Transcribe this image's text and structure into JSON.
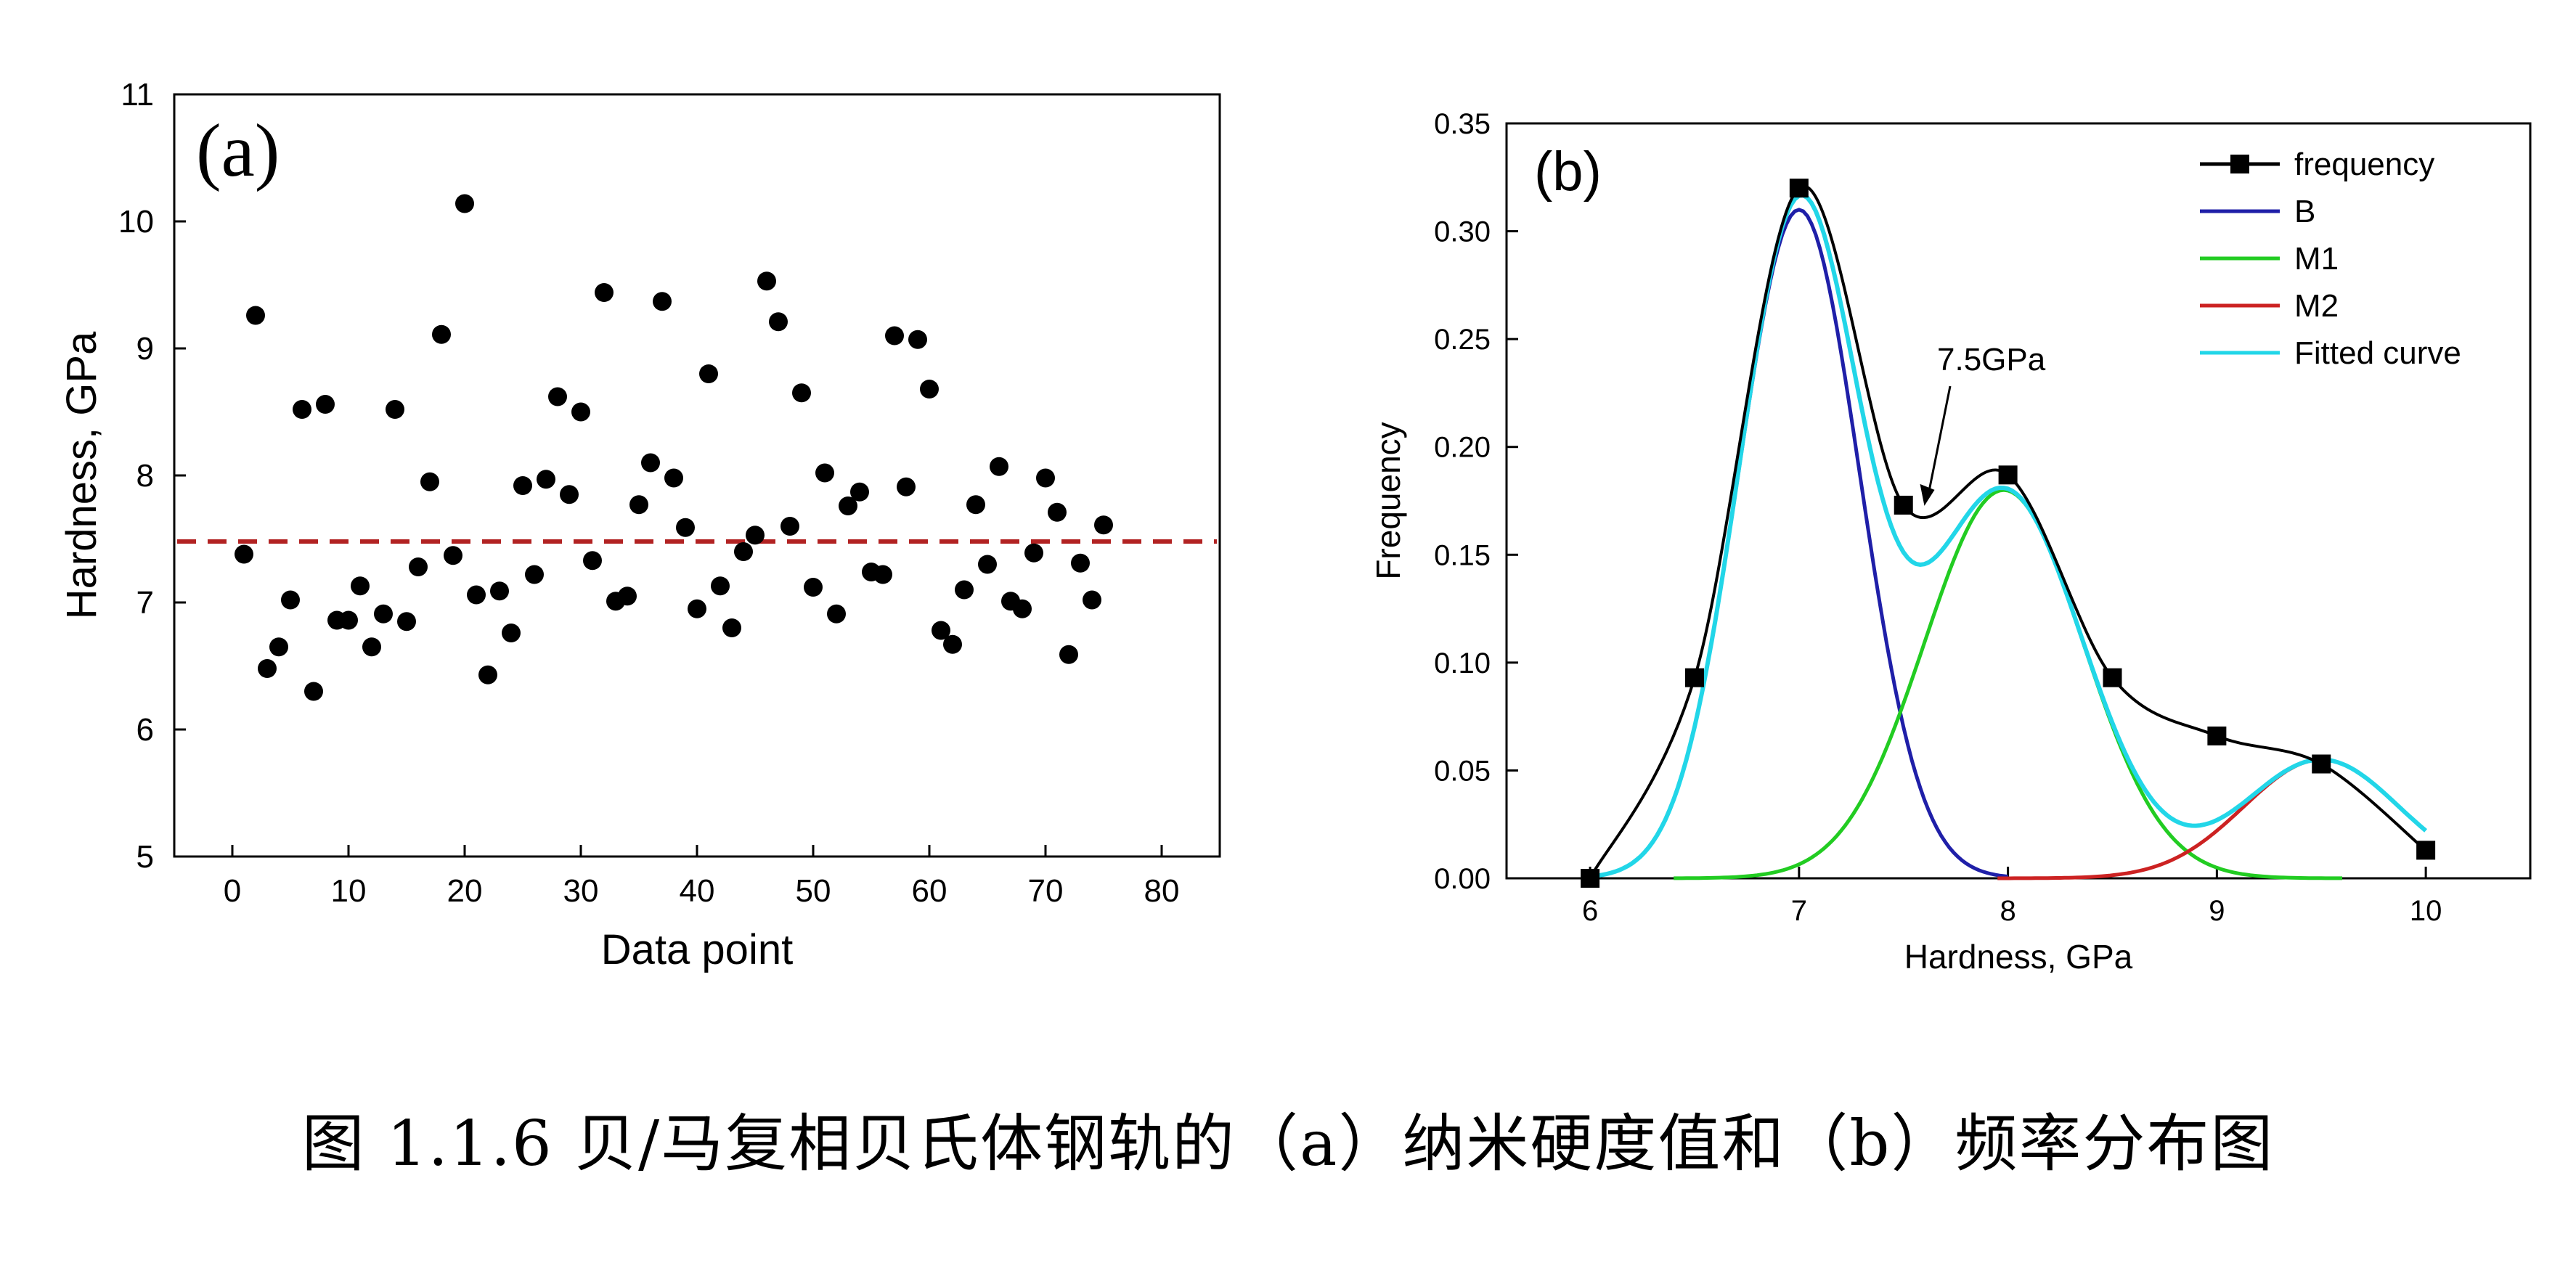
{
  "caption": "图 1.1.6 贝/马复相贝氏体钢轨的（a）纳米硬度值和（b）频率分布图",
  "chart_data": [
    {
      "type": "scatter",
      "panel_label": "(a)",
      "xlabel": "Data point",
      "ylabel": "Hardness, GPa",
      "xlim": [
        -5,
        85
      ],
      "ylim": [
        5,
        11
      ],
      "xticks": [
        "0",
        "10",
        "20",
        "30",
        "40",
        "50",
        "60",
        "70",
        "80"
      ],
      "yticks": [
        "5",
        "6",
        "7",
        "8",
        "9",
        "10",
        "11"
      ],
      "reference_line": {
        "y": 7.48,
        "style": "dashed",
        "color": "#b22222"
      },
      "marker_color": "#000000",
      "x": [
        1,
        2,
        3,
        4,
        5,
        6,
        7,
        8,
        9,
        10,
        11,
        12,
        13,
        14,
        15,
        16,
        17,
        18,
        19,
        20,
        21,
        22,
        23,
        24,
        25,
        26,
        27,
        28,
        29,
        30,
        31,
        32,
        33,
        34,
        35,
        36,
        37,
        38,
        39,
        40,
        41,
        42,
        43,
        44,
        45,
        46,
        47,
        48,
        49,
        50,
        51,
        52,
        53,
        54,
        55,
        56,
        57,
        58,
        59,
        60,
        61,
        62,
        63,
        64,
        65,
        66,
        67,
        68,
        69,
        70,
        71,
        72,
        73,
        74,
        75
      ],
      "y": [
        7.38,
        9.26,
        6.48,
        6.65,
        7.02,
        8.52,
        6.3,
        8.56,
        6.86,
        6.86,
        7.13,
        6.65,
        6.91,
        8.52,
        6.85,
        7.28,
        7.95,
        9.11,
        7.37,
        10.14,
        7.06,
        6.43,
        7.09,
        6.76,
        7.92,
        7.22,
        7.97,
        8.62,
        7.85,
        8.5,
        7.33,
        9.44,
        7.01,
        7.05,
        7.77,
        8.1,
        9.37,
        7.98,
        7.59,
        6.95,
        8.8,
        7.13,
        6.8,
        7.4,
        7.53,
        9.53,
        9.21,
        7.6,
        8.65,
        7.12,
        8.02,
        6.91,
        7.76,
        7.87,
        7.24,
        7.22,
        9.1,
        7.91,
        9.07,
        8.68,
        6.78,
        6.67,
        7.1,
        7.77,
        7.3,
        8.07,
        7.01,
        6.95,
        7.39,
        7.98,
        7.71,
        6.59,
        7.31,
        7.02,
        7.61
      ]
    },
    {
      "type": "line",
      "panel_label": "(b)",
      "xlabel": "Hardness, GPa",
      "ylabel": "Frequency",
      "xlim": [
        5.6,
        10.5
      ],
      "ylim": [
        0,
        0.35
      ],
      "xticks": [
        "6",
        "7",
        "8",
        "9",
        "10"
      ],
      "yticks": [
        "0.00",
        "0.05",
        "0.10",
        "0.15",
        "0.20",
        "0.25",
        "0.30",
        "0.35"
      ],
      "annotation": {
        "text": "7.5GPa",
        "x": 7.6,
        "y": 0.17
      },
      "legend_position": "top-right",
      "series": [
        {
          "name": "frequency",
          "color": "#000000",
          "marker": "square",
          "x": [
            6.0,
            6.5,
            7.0,
            7.5,
            8.0,
            8.5,
            9.0,
            9.5,
            10.0
          ],
          "y": [
            0.0,
            0.093,
            0.32,
            0.173,
            0.187,
            0.093,
            0.066,
            0.053,
            0.013
          ]
        },
        {
          "name": "B",
          "color": "#1f1fa8",
          "gaussian": {
            "mean": 7.0,
            "sd": 0.29,
            "amp": 0.31,
            "xmin": 6.0,
            "xmax": 8.0
          }
        },
        {
          "name": "M1",
          "color": "#22cc22",
          "gaussian": {
            "mean": 7.98,
            "sd": 0.38,
            "amp": 0.18,
            "xmin": 6.4,
            "xmax": 9.6
          }
        },
        {
          "name": "M2",
          "color": "#cc2222",
          "gaussian": {
            "mean": 9.5,
            "sd": 0.37,
            "amp": 0.055,
            "xmin": 7.95,
            "xmax": 9.65
          }
        },
        {
          "name": "Fitted curve",
          "color": "#22d6e8",
          "xmax": 10.0
        }
      ]
    }
  ]
}
